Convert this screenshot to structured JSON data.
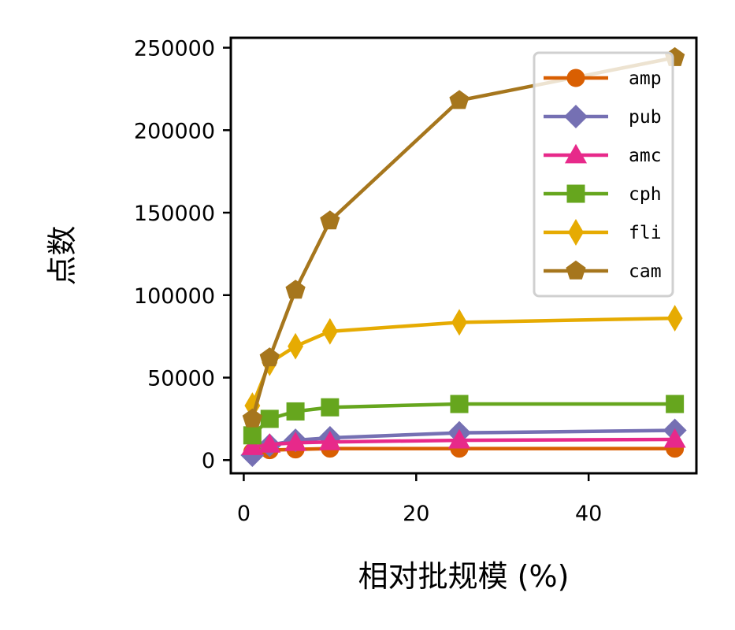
{
  "chart_data": {
    "type": "line",
    "xlabel": "相对批规模 (%)",
    "ylabel": "点数",
    "xlim": [
      -1.5,
      52.5
    ],
    "ylim": [
      -8000,
      256000
    ],
    "x_ticks": [
      0,
      20,
      40
    ],
    "y_ticks": [
      0,
      50000,
      100000,
      150000,
      200000,
      250000
    ],
    "x_tick_labels": [
      "0",
      "20",
      "40"
    ],
    "y_tick_labels": [
      "0",
      "50000",
      "100000",
      "150000",
      "200000",
      "250000"
    ],
    "grid": false,
    "legend_position": "top-right",
    "x": [
      1,
      3,
      6,
      10,
      25,
      50
    ],
    "series": [
      {
        "name": "amp",
        "color": "#d95f02",
        "marker": "circle",
        "values": [
          5000,
          6000,
          6500,
          7000,
          7000,
          7000
        ]
      },
      {
        "name": "pub",
        "color": "#7570b3",
        "marker": "diamond",
        "values": [
          3000,
          9000,
          12000,
          13500,
          16500,
          18000
        ]
      },
      {
        "name": "amc",
        "color": "#e7298a",
        "marker": "triangle",
        "values": [
          8000,
          9500,
          10500,
          11000,
          12000,
          12500
        ]
      },
      {
        "name": "cph",
        "color": "#66a61e",
        "marker": "square",
        "values": [
          15000,
          25000,
          29500,
          32000,
          34000,
          34000
        ]
      },
      {
        "name": "fli",
        "color": "#e6ab02",
        "marker": "thin_diamond",
        "values": [
          33000,
          59000,
          69000,
          78000,
          83500,
          86000
        ]
      },
      {
        "name": "cam",
        "color": "#a6761d",
        "marker": "pentagon",
        "values": [
          25000,
          62000,
          103000,
          145000,
          218000,
          244000
        ]
      }
    ]
  }
}
